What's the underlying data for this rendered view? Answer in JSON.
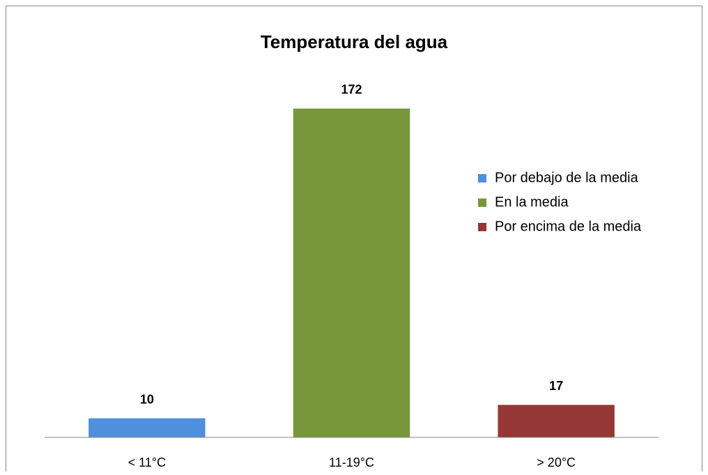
{
  "chart_data": {
    "type": "bar",
    "title": "Temperatura del agua",
    "categories": [
      "< 11°C",
      "11-19°C",
      "> 20°C"
    ],
    "series": [
      {
        "name": "Por debajo de la media",
        "color": "#4f8fdc",
        "values": [
          10,
          null,
          null
        ]
      },
      {
        "name": "En la media",
        "color": "#78973d",
        "values": [
          null,
          172,
          null
        ]
      },
      {
        "name": "Por encima de la media",
        "color": "#953735",
        "values": [
          null,
          null,
          17
        ]
      }
    ],
    "ylim": [
      0,
      200
    ],
    "grid": false,
    "legend": "right"
  }
}
